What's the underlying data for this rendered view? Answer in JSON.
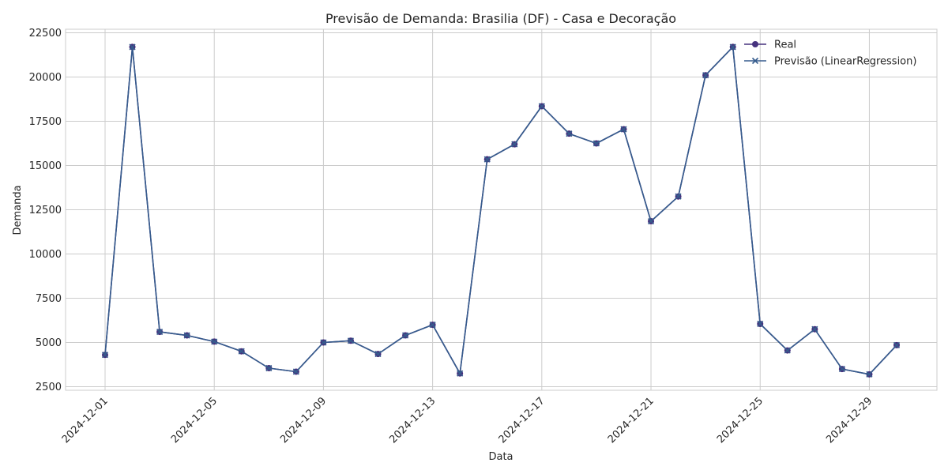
{
  "chart_data": {
    "type": "line",
    "title": "Previsão de Demanda: Brasilia (DF) - Casa e Decoração",
    "xlabel": "Data",
    "ylabel": "Demanda",
    "x": [
      "2024-12-01",
      "2024-12-02",
      "2024-12-03",
      "2024-12-04",
      "2024-12-05",
      "2024-12-06",
      "2024-12-07",
      "2024-12-08",
      "2024-12-09",
      "2024-12-10",
      "2024-12-11",
      "2024-12-12",
      "2024-12-13",
      "2024-12-14",
      "2024-12-15",
      "2024-12-16",
      "2024-12-17",
      "2024-12-18",
      "2024-12-19",
      "2024-12-20",
      "2024-12-21",
      "2024-12-22",
      "2024-12-23",
      "2024-12-24",
      "2024-12-25",
      "2024-12-26",
      "2024-12-27",
      "2024-12-28",
      "2024-12-29",
      "2024-12-30"
    ],
    "xticks": [
      "2024-12-01",
      "2024-12-05",
      "2024-12-09",
      "2024-12-13",
      "2024-12-17",
      "2024-12-21",
      "2024-12-25",
      "2024-12-29"
    ],
    "ylim": [
      2300,
      22700
    ],
    "yticks": [
      2500,
      5000,
      7500,
      10000,
      12500,
      15000,
      17500,
      20000,
      22500
    ],
    "grid": true,
    "legend_position": "top-right",
    "series": [
      {
        "name": "Real",
        "marker": "circle",
        "color": "#46327e",
        "values": [
          4300,
          21700,
          5600,
          5400,
          5050,
          4500,
          3550,
          3350,
          5000,
          5100,
          4350,
          5400,
          6000,
          3250,
          15350,
          16200,
          18350,
          16800,
          16250,
          17050,
          11850,
          13250,
          20100,
          21700,
          6050,
          4550,
          5750,
          3500,
          3200,
          4850
        ]
      },
      {
        "name": "Previsão (LinearRegression)",
        "marker": "x",
        "color": "#365c8d",
        "values": [
          4300,
          21700,
          5600,
          5400,
          5050,
          4500,
          3550,
          3350,
          5000,
          5100,
          4350,
          5400,
          6000,
          3250,
          15350,
          16200,
          18350,
          16800,
          16250,
          17050,
          11850,
          13250,
          20100,
          21700,
          6050,
          4550,
          5750,
          3500,
          3200,
          4850
        ]
      }
    ]
  }
}
